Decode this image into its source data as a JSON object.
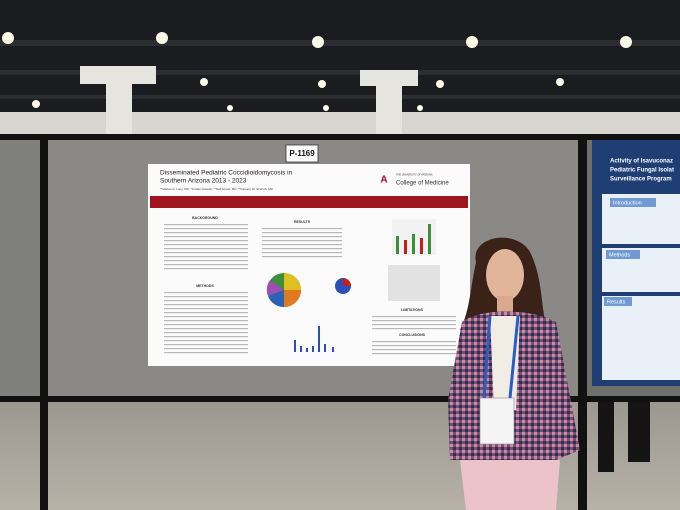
{
  "scene": {
    "booth_number": "P-1169"
  },
  "main_poster": {
    "title_line1": "Disseminated Pediatric Coccidioidomycosis in",
    "title_line2": "Southern Arizona 2013 - 2023",
    "authors": "**Marian G. Lacy, MD; *Jordan Gotwalt; **Neil Ampel, MD; **Kareem W. Shehab, MD",
    "institution_small": "THE UNIVERSITY OF ARIZONA",
    "institution": "College of Medicine",
    "sections": [
      "BACKGROUND",
      "RESULTS",
      "METHODS",
      "LIMITATIONS",
      "CONCLUSIONS"
    ]
  },
  "side_poster": {
    "title_line1": "Activity of Isavuconaz",
    "title_line2": "Pediatric Fungal Isolat",
    "title_line3": "Surveillance Program",
    "sections": [
      "Introduction",
      "Methods",
      "Results"
    ]
  }
}
